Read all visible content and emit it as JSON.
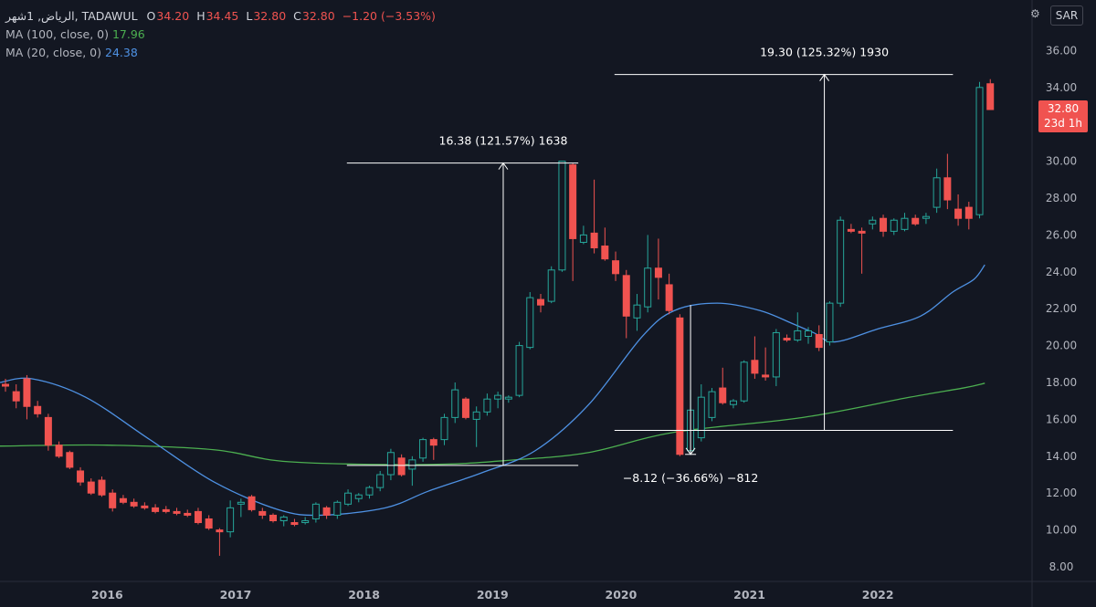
{
  "legend": {
    "symbol": "الرياض, 1شهر, TADAWUL",
    "open_label": "O",
    "open": "34.20",
    "high_label": "H",
    "high": "34.45",
    "low_label": "L",
    "low": "32.80",
    "close_label": "C",
    "close": "32.80",
    "change": "−1.20 (−3.53%)",
    "ma100_label": "MA (100, close, 0)",
    "ma100_value": "17.96",
    "ma20_label": "MA (20, close, 0)",
    "ma20_value": "24.38"
  },
  "toolbar": {
    "currency_button": "SAR",
    "icon": "chart-settings-icon"
  },
  "price_tag": {
    "price": "32.80",
    "countdown": "23d 1h"
  },
  "colors": {
    "bg": "#131722",
    "up": "#26a69a",
    "down": "#f05350",
    "ma20": "#4e91e3",
    "ma100": "#4caf50",
    "text": "#d1d4dc",
    "measure": "#ffffff"
  },
  "chart_data": {
    "type": "candlestick",
    "interval": "1 month",
    "ylim": [
      8,
      37
    ],
    "yticks": [
      "8.00",
      "10.00",
      "12.00",
      "14.00",
      "16.00",
      "18.00",
      "20.00",
      "22.00",
      "24.00",
      "26.00",
      "28.00",
      "30.00",
      "32.00",
      "34.00",
      "36.00"
    ],
    "xticks": [
      "2016",
      "2017",
      "2018",
      "2019",
      "2020",
      "2021",
      "2022"
    ],
    "candles": [
      {
        "o": 17.9,
        "h": 18.2,
        "l": 17.5,
        "c": 17.8
      },
      {
        "o": 17.5,
        "h": 17.9,
        "l": 16.6,
        "c": 17.0
      },
      {
        "o": 18.2,
        "h": 18.4,
        "l": 16.0,
        "c": 16.7
      },
      {
        "o": 16.7,
        "h": 17.0,
        "l": 16.1,
        "c": 16.3
      },
      {
        "o": 16.1,
        "h": 16.3,
        "l": 14.3,
        "c": 14.6
      },
      {
        "o": 14.6,
        "h": 14.8,
        "l": 13.9,
        "c": 14.0
      },
      {
        "o": 14.2,
        "h": 14.3,
        "l": 13.3,
        "c": 13.4
      },
      {
        "o": 13.2,
        "h": 13.4,
        "l": 12.4,
        "c": 12.6
      },
      {
        "o": 12.6,
        "h": 12.8,
        "l": 11.9,
        "c": 12.0
      },
      {
        "o": 12.7,
        "h": 12.9,
        "l": 11.8,
        "c": 11.9
      },
      {
        "o": 12.0,
        "h": 12.2,
        "l": 11.0,
        "c": 11.2
      },
      {
        "o": 11.7,
        "h": 11.9,
        "l": 11.4,
        "c": 11.5
      },
      {
        "o": 11.5,
        "h": 11.7,
        "l": 11.2,
        "c": 11.3
      },
      {
        "o": 11.3,
        "h": 11.5,
        "l": 11.1,
        "c": 11.2
      },
      {
        "o": 11.2,
        "h": 11.4,
        "l": 10.9,
        "c": 11.0
      },
      {
        "o": 11.1,
        "h": 11.3,
        "l": 10.9,
        "c": 11.0
      },
      {
        "o": 11.0,
        "h": 11.2,
        "l": 10.8,
        "c": 10.9
      },
      {
        "o": 10.9,
        "h": 11.1,
        "l": 10.7,
        "c": 10.8
      },
      {
        "o": 11.0,
        "h": 11.2,
        "l": 10.3,
        "c": 10.4
      },
      {
        "o": 10.6,
        "h": 10.8,
        "l": 10.0,
        "c": 10.1
      },
      {
        "o": 10.0,
        "h": 10.1,
        "l": 8.6,
        "c": 9.9
      },
      {
        "o": 9.9,
        "h": 11.6,
        "l": 9.6,
        "c": 11.2
      },
      {
        "o": 11.4,
        "h": 11.7,
        "l": 10.7,
        "c": 11.5
      },
      {
        "o": 11.8,
        "h": 11.9,
        "l": 11.0,
        "c": 11.1
      },
      {
        "o": 11.0,
        "h": 11.2,
        "l": 10.6,
        "c": 10.8
      },
      {
        "o": 10.8,
        "h": 10.9,
        "l": 10.4,
        "c": 10.5
      },
      {
        "o": 10.5,
        "h": 10.8,
        "l": 10.2,
        "c": 10.7
      },
      {
        "o": 10.4,
        "h": 10.6,
        "l": 10.2,
        "c": 10.3
      },
      {
        "o": 10.4,
        "h": 10.7,
        "l": 10.3,
        "c": 10.5
      },
      {
        "o": 10.6,
        "h": 11.5,
        "l": 10.4,
        "c": 11.4
      },
      {
        "o": 11.2,
        "h": 11.3,
        "l": 10.6,
        "c": 10.8
      },
      {
        "o": 10.8,
        "h": 11.6,
        "l": 10.6,
        "c": 11.5
      },
      {
        "o": 11.4,
        "h": 12.2,
        "l": 11.3,
        "c": 12.0
      },
      {
        "o": 11.7,
        "h": 12.0,
        "l": 11.5,
        "c": 11.9
      },
      {
        "o": 11.9,
        "h": 12.4,
        "l": 11.7,
        "c": 12.3
      },
      {
        "o": 12.3,
        "h": 13.2,
        "l": 12.1,
        "c": 13.0
      },
      {
        "o": 13.0,
        "h": 14.4,
        "l": 12.7,
        "c": 14.2
      },
      {
        "o": 13.9,
        "h": 14.1,
        "l": 12.9,
        "c": 13.0
      },
      {
        "o": 13.3,
        "h": 14.0,
        "l": 12.4,
        "c": 13.8
      },
      {
        "o": 13.9,
        "h": 15.0,
        "l": 13.7,
        "c": 14.9
      },
      {
        "o": 14.9,
        "h": 15.0,
        "l": 13.8,
        "c": 14.6
      },
      {
        "o": 14.9,
        "h": 16.3,
        "l": 14.6,
        "c": 16.1
      },
      {
        "o": 16.1,
        "h": 18.0,
        "l": 15.8,
        "c": 17.6
      },
      {
        "o": 17.1,
        "h": 17.2,
        "l": 16.0,
        "c": 16.1
      },
      {
        "o": 16.0,
        "h": 16.7,
        "l": 14.5,
        "c": 16.4
      },
      {
        "o": 16.4,
        "h": 17.4,
        "l": 16.2,
        "c": 17.1
      },
      {
        "o": 17.1,
        "h": 17.5,
        "l": 16.6,
        "c": 17.3
      },
      {
        "o": 17.1,
        "h": 17.3,
        "l": 16.9,
        "c": 17.2
      },
      {
        "o": 17.3,
        "h": 20.2,
        "l": 17.2,
        "c": 20.0
      },
      {
        "o": 19.9,
        "h": 22.9,
        "l": 19.8,
        "c": 22.6
      },
      {
        "o": 22.5,
        "h": 22.8,
        "l": 21.8,
        "c": 22.2
      },
      {
        "o": 22.4,
        "h": 24.3,
        "l": 22.3,
        "c": 24.1
      },
      {
        "o": 24.1,
        "h": 30.0,
        "l": 24.0,
        "c": 30.0
      },
      {
        "o": 29.8,
        "h": 29.9,
        "l": 23.5,
        "c": 25.8
      },
      {
        "o": 25.6,
        "h": 26.5,
        "l": 25.5,
        "c": 26.0
      },
      {
        "o": 26.1,
        "h": 29.0,
        "l": 25.0,
        "c": 25.3
      },
      {
        "o": 25.4,
        "h": 26.4,
        "l": 24.6,
        "c": 24.7
      },
      {
        "o": 24.6,
        "h": 25.1,
        "l": 23.5,
        "c": 23.9
      },
      {
        "o": 23.8,
        "h": 24.1,
        "l": 20.4,
        "c": 21.6
      },
      {
        "o": 21.5,
        "h": 22.8,
        "l": 20.8,
        "c": 22.2
      },
      {
        "o": 22.1,
        "h": 26.0,
        "l": 21.8,
        "c": 24.2
      },
      {
        "o": 24.2,
        "h": 25.8,
        "l": 22.5,
        "c": 23.7
      },
      {
        "o": 23.3,
        "h": 23.9,
        "l": 21.7,
        "c": 21.9
      },
      {
        "o": 21.5,
        "h": 21.7,
        "l": 14.0,
        "c": 14.1
      },
      {
        "o": 14.3,
        "h": 17.6,
        "l": 14.1,
        "c": 16.5
      },
      {
        "o": 15.0,
        "h": 17.9,
        "l": 14.8,
        "c": 17.2
      },
      {
        "o": 16.1,
        "h": 17.7,
        "l": 15.9,
        "c": 17.5
      },
      {
        "o": 17.7,
        "h": 18.8,
        "l": 16.8,
        "c": 16.9
      },
      {
        "o": 16.8,
        "h": 17.1,
        "l": 16.6,
        "c": 17.0
      },
      {
        "o": 17.0,
        "h": 19.2,
        "l": 16.9,
        "c": 19.1
      },
      {
        "o": 19.2,
        "h": 20.5,
        "l": 18.2,
        "c": 18.5
      },
      {
        "o": 18.4,
        "h": 19.9,
        "l": 18.1,
        "c": 18.3
      },
      {
        "o": 18.3,
        "h": 20.9,
        "l": 17.8,
        "c": 20.7
      },
      {
        "o": 20.4,
        "h": 20.6,
        "l": 20.2,
        "c": 20.3
      },
      {
        "o": 20.3,
        "h": 21.8,
        "l": 20.2,
        "c": 20.8
      },
      {
        "o": 20.5,
        "h": 21.0,
        "l": 20.1,
        "c": 20.8
      },
      {
        "o": 20.6,
        "h": 21.1,
        "l": 19.7,
        "c": 19.9
      },
      {
        "o": 20.2,
        "h": 22.4,
        "l": 20.0,
        "c": 22.3
      },
      {
        "o": 22.3,
        "h": 27.0,
        "l": 22.1,
        "c": 26.8
      },
      {
        "o": 26.3,
        "h": 26.6,
        "l": 26.1,
        "c": 26.2
      },
      {
        "o": 26.2,
        "h": 26.4,
        "l": 23.9,
        "c": 26.1
      },
      {
        "o": 26.6,
        "h": 27.0,
        "l": 26.3,
        "c": 26.8
      },
      {
        "o": 26.9,
        "h": 27.1,
        "l": 25.9,
        "c": 26.2
      },
      {
        "o": 26.2,
        "h": 26.9,
        "l": 26.0,
        "c": 26.8
      },
      {
        "o": 26.3,
        "h": 27.2,
        "l": 26.2,
        "c": 26.9
      },
      {
        "o": 26.9,
        "h": 27.1,
        "l": 26.5,
        "c": 26.6
      },
      {
        "o": 26.9,
        "h": 27.2,
        "l": 26.6,
        "c": 27.0
      },
      {
        "o": 27.5,
        "h": 29.6,
        "l": 27.2,
        "c": 29.1
      },
      {
        "o": 29.1,
        "h": 30.4,
        "l": 27.4,
        "c": 27.9
      },
      {
        "o": 27.4,
        "h": 28.2,
        "l": 26.5,
        "c": 26.9
      },
      {
        "o": 27.5,
        "h": 27.8,
        "l": 26.3,
        "c": 26.9
      },
      {
        "o": 27.1,
        "h": 34.3,
        "l": 26.9,
        "c": 34.0
      },
      {
        "o": 34.2,
        "h": 34.45,
        "l": 32.8,
        "c": 32.8
      }
    ],
    "ma20": [
      {
        "i": 0,
        "v": 18.0
      },
      {
        "i": 3,
        "v": 18.2
      },
      {
        "i": 8,
        "v": 17.2
      },
      {
        "i": 14,
        "v": 14.9
      },
      {
        "i": 20,
        "v": 12.6
      },
      {
        "i": 26,
        "v": 11.1
      },
      {
        "i": 30,
        "v": 10.8
      },
      {
        "i": 36,
        "v": 11.2
      },
      {
        "i": 40,
        "v": 12.1
      },
      {
        "i": 45,
        "v": 13.1
      },
      {
        "i": 50,
        "v": 14.3
      },
      {
        "i": 55,
        "v": 16.8
      },
      {
        "i": 60,
        "v": 20.5
      },
      {
        "i": 63,
        "v": 21.9
      },
      {
        "i": 67,
        "v": 22.3
      },
      {
        "i": 71,
        "v": 21.9
      },
      {
        "i": 74,
        "v": 21.2
      },
      {
        "i": 76,
        "v": 20.7
      },
      {
        "i": 78,
        "v": 20.2
      },
      {
        "i": 82,
        "v": 20.9
      },
      {
        "i": 86,
        "v": 21.6
      },
      {
        "i": 89,
        "v": 22.9
      },
      {
        "i": 91,
        "v": 23.6
      },
      {
        "i": 92,
        "v": 24.38
      }
    ],
    "ma100": [
      {
        "i": 0,
        "v": 14.55
      },
      {
        "i": 10,
        "v": 14.6
      },
      {
        "i": 20,
        "v": 14.35
      },
      {
        "i": 27,
        "v": 13.7
      },
      {
        "i": 40,
        "v": 13.55
      },
      {
        "i": 48,
        "v": 13.8
      },
      {
        "i": 55,
        "v": 14.2
      },
      {
        "i": 63,
        "v": 15.3
      },
      {
        "i": 75,
        "v": 16.1
      },
      {
        "i": 85,
        "v": 17.2
      },
      {
        "i": 90,
        "v": 17.7
      },
      {
        "i": 92,
        "v": 17.96
      }
    ],
    "measurements": [
      {
        "label": "16.38 (121.57%) 1638",
        "i0": 40,
        "i1": 53,
        "from": 13.5,
        "to": 29.9
      },
      {
        "label": "−8.12 (−36.66%) −812",
        "i0": 64,
        "i1": 64,
        "from": 22.2,
        "to": 14.1
      },
      {
        "label": "19.30 (125.32%) 1930",
        "i0": 65,
        "i1": 88,
        "from": 15.4,
        "to": 34.7
      }
    ]
  }
}
